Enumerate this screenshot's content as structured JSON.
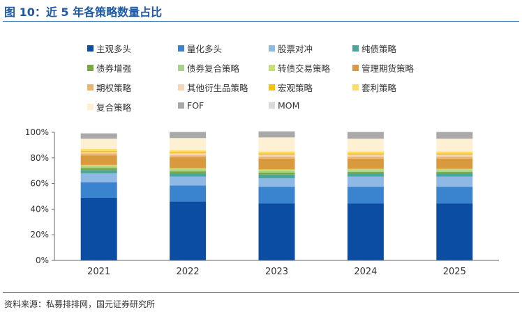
{
  "header": {
    "title": "图 10：近 5 年各策略数量占比"
  },
  "footer": {
    "source": "资料来源：私募排排网，国元证券研究所"
  },
  "chart_data": {
    "type": "bar",
    "stacked": true,
    "categories": [
      "2021",
      "2022",
      "2023",
      "2024",
      "2025"
    ],
    "ylim": [
      0,
      100
    ],
    "yticks": [
      "0%",
      "20%",
      "40%",
      "60%",
      "80%",
      "100%"
    ],
    "legend_position": "top",
    "series": [
      {
        "name": "主观多头",
        "color": "#0a4da2",
        "values": [
          49,
          46,
          44.5,
          44.5,
          44.5
        ]
      },
      {
        "name": "量化多头",
        "color": "#3a83cf",
        "values": [
          12,
          12.5,
          13,
          13,
          13
        ]
      },
      {
        "name": "股票对冲",
        "color": "#8db9e4",
        "values": [
          7,
          7,
          6.5,
          8,
          8
        ]
      },
      {
        "name": "纯债策略",
        "color": "#4aa59a",
        "values": [
          2.5,
          2.5,
          3,
          2.5,
          2.5
        ]
      },
      {
        "name": "债券增强",
        "color": "#77a843",
        "values": [
          1.5,
          1.5,
          1.5,
          1,
          1
        ]
      },
      {
        "name": "债券复合策略",
        "color": "#a9d18e",
        "values": [
          1.5,
          1.5,
          1.5,
          1.5,
          1.5
        ]
      },
      {
        "name": "转债交易策略",
        "color": "#c5e06d",
        "values": [
          1,
          1,
          1,
          1,
          1
        ]
      },
      {
        "name": "管理期货策略",
        "color": "#d99a3e",
        "values": [
          7.5,
          8.5,
          8.5,
          8,
          8
        ]
      },
      {
        "name": "期权策略",
        "color": "#ecb56f",
        "values": [
          1.5,
          1.5,
          1.5,
          1.5,
          1.5
        ]
      },
      {
        "name": "其他衍生品策略",
        "color": "#f6d6b3",
        "values": [
          1,
          1.5,
          1.5,
          1.5,
          1.5
        ]
      },
      {
        "name": "宏观策略",
        "color": "#f8c10c",
        "values": [
          1,
          1,
          1,
          1,
          1
        ]
      },
      {
        "name": "套利策略",
        "color": "#fddc6b",
        "values": [
          1.5,
          1.5,
          1.5,
          1.5,
          1.5
        ]
      },
      {
        "name": "复合策略",
        "color": "#fdf0d3",
        "values": [
          8,
          9.5,
          11,
          10,
          10
        ]
      },
      {
        "name": "FOF",
        "color": "#a9a9a9",
        "values": [
          4,
          4.5,
          4.5,
          5,
          5
        ]
      },
      {
        "name": "MOM",
        "color": "#d9d9d9",
        "values": [
          0.5,
          0.5,
          0.5,
          0.5,
          0.5
        ]
      }
    ]
  }
}
